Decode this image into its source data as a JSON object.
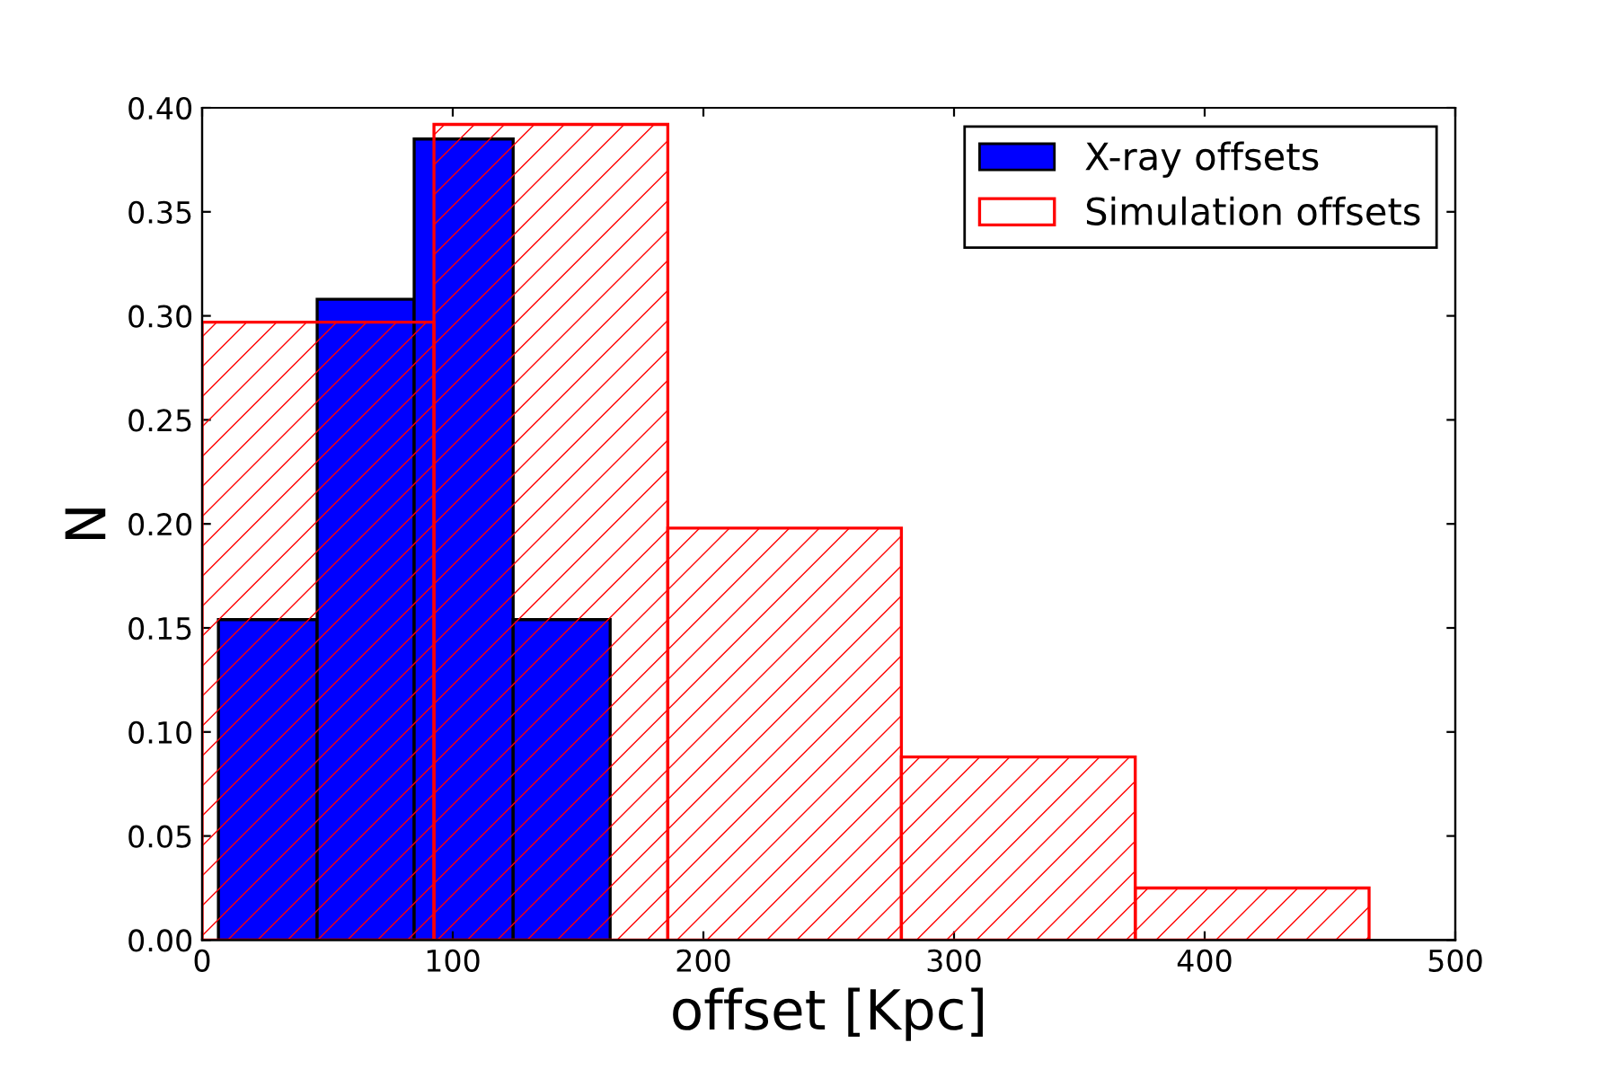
{
  "chart_data": [
    {
      "type": "histogram",
      "xlabel": "offset [Kpc]",
      "ylabel": "N",
      "series": [
        {
          "name": "X-ray offsets",
          "color": "#0000ff",
          "values": [
            0.154,
            0.308,
            0.385,
            0.154
          ]
        }
      ],
      "bins": [
        6.5,
        45.9,
        84.6,
        124.1,
        162.8
      ],
      "xlim": [
        0,
        500
      ],
      "xticks": [
        0,
        100,
        200,
        300,
        400,
        500
      ],
      "ylim": [
        0,
        0.4
      ],
      "yticks": [
        {
          "value": 0,
          "label": "0.00"
        },
        {
          "value": 0.05,
          "label": "0.05"
        },
        {
          "value": 0.1,
          "label": "0.10"
        },
        {
          "value": 0.15,
          "label": "0.15"
        },
        {
          "value": 0.2,
          "label": "0.20"
        },
        {
          "value": 0.25,
          "label": "0.25"
        },
        {
          "value": 0.3,
          "label": "0.30"
        },
        {
          "value": 0.35,
          "label": "0.35"
        },
        {
          "value": 0.4,
          "label": "0.40"
        }
      ],
      "grid": false,
      "legend": "top right"
    },
    {
      "type": "histogram",
      "series": [
        {
          "name": "Simulation offsets",
          "color": "#ff0000",
          "values": [
            0.297,
            0.392,
            0.198,
            0.088,
            0.025
          ]
        }
      ],
      "bins": [
        0,
        92.5,
        185.8,
        279,
        372.3,
        465.6
      ],
      "xlim": [
        0,
        500
      ],
      "ylim": [
        0,
        0.4
      ],
      "tick_labels": false,
      "grid": false,
      "legend": "top right"
    }
  ]
}
